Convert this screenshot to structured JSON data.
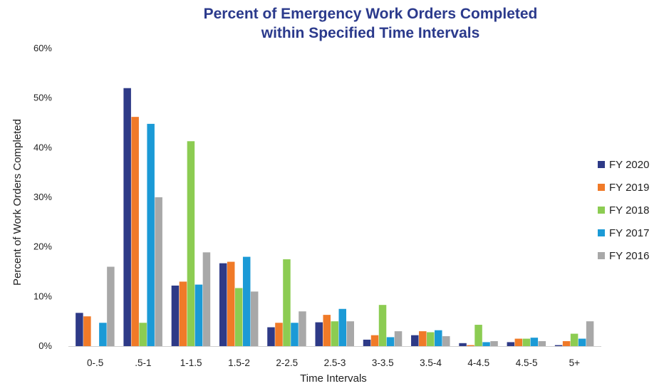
{
  "chart_data": {
    "type": "bar",
    "title_lines": [
      "Percent of Emergency Work Orders Completed",
      "within Specified Time Intervals"
    ],
    "xlabel": "Time Intervals",
    "ylabel": "Percent of Work Orders Completed",
    "ylim": [
      0,
      60
    ],
    "yticks": [
      "0%",
      "10%",
      "20%",
      "30%",
      "40%",
      "50%",
      "60%"
    ],
    "grid": false,
    "legend_position": "right",
    "categories": [
      "0-.5",
      ".5-1",
      "1-1.5",
      "1.5-2",
      "2-2.5",
      "2.5-3",
      "3-3.5",
      "3.5-4",
      "4-4.5",
      "4.5-5",
      "5+"
    ],
    "series": [
      {
        "name": "FY 2020",
        "color": "#2e3a87",
        "values": [
          6.7,
          52.0,
          12.2,
          16.7,
          3.8,
          4.8,
          1.3,
          2.2,
          0.6,
          0.8,
          0.2
        ]
      },
      {
        "name": "FY 2019",
        "color": "#f07a28",
        "values": [
          6.0,
          46.2,
          13.0,
          17.0,
          4.7,
          6.3,
          2.2,
          3.0,
          0.2,
          1.5,
          1.0
        ]
      },
      {
        "name": "FY 2018",
        "color": "#8ccc52",
        "values": [
          0.0,
          4.7,
          41.3,
          11.7,
          17.5,
          5.0,
          8.3,
          2.8,
          4.3,
          1.5,
          2.5
        ]
      },
      {
        "name": "FY 2017",
        "color": "#1b9ad6",
        "values": [
          4.7,
          44.8,
          12.4,
          18.0,
          4.7,
          7.5,
          1.8,
          3.2,
          0.8,
          1.7,
          1.5
        ]
      },
      {
        "name": "FY 2016",
        "color": "#a8a8a8",
        "values": [
          16.0,
          30.0,
          18.9,
          11.0,
          7.0,
          5.0,
          3.0,
          2.0,
          1.0,
          1.0,
          5.0
        ]
      }
    ]
  }
}
